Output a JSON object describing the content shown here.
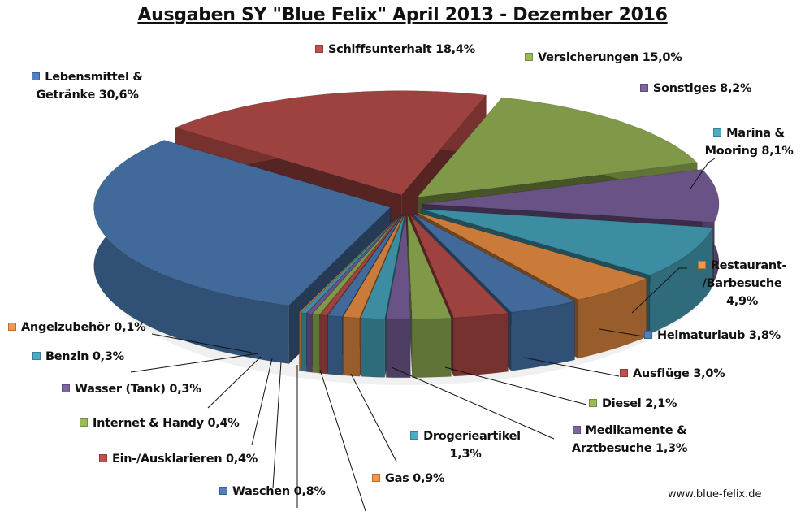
{
  "chart_data": {
    "type": "pie",
    "style": "3d-exploded",
    "title": "Ausgaben SY \"Blue Felix\" April 2013 - Dezember 2016",
    "unit": "%",
    "slices": [
      {
        "name": "Lebensmittel & Getränke",
        "value": 30.6,
        "label": "Lebensmittel & Getränke 30,6%",
        "color": "#4F81BD"
      },
      {
        "name": "Schiffsunterhalt",
        "value": 18.4,
        "label": "Schiffsunterhalt 18,4%",
        "color": "#C0504D"
      },
      {
        "name": "Versicherungen",
        "value": 15.0,
        "label": "Versicherungen 15,0%",
        "color": "#9BBB59"
      },
      {
        "name": "Sonstiges",
        "value": 8.2,
        "label": "Sonstiges 8,2%",
        "color": "#8064A2"
      },
      {
        "name": "Marina & Mooring",
        "value": 8.1,
        "label": "Marina & Mooring 8,1%",
        "color": "#4BACC6"
      },
      {
        "name": "Restaurant-/Barbesuche",
        "value": 4.9,
        "label": "Restaurant- /Barbesuche 4,9%",
        "color": "#F79646"
      },
      {
        "name": "Heimaturlaub",
        "value": 3.8,
        "label": "Heimaturlaub 3,8%",
        "color": "#4F81BD"
      },
      {
        "name": "Ausflüge",
        "value": 3.0,
        "label": "Ausflüge 3,0%",
        "color": "#C0504D"
      },
      {
        "name": "Diesel",
        "value": 2.1,
        "label": "Diesel 2,1%",
        "color": "#9BBB59"
      },
      {
        "name": "Medikamente & Arztbesuche",
        "value": 1.3,
        "label": "Medikamente & Arztbesuche 1,3%",
        "color": "#8064A2"
      },
      {
        "name": "Drogerieartikel",
        "value": 1.3,
        "label": "Drogerieartikel 1,3%",
        "color": "#4BACC6"
      },
      {
        "name": "Gas",
        "value": 0.9,
        "label": "Gas 0,9%",
        "color": "#F79646"
      },
      {
        "name": "Waschen",
        "value": 0.8,
        "label": "Waschen 0,8%",
        "color": "#4F81BD"
      },
      {
        "name": "Ein-/Ausklarieren",
        "value": 0.4,
        "label": "Ein-/Ausklarieren 0,4%",
        "color": "#C0504D"
      },
      {
        "name": "Internet & Handy",
        "value": 0.4,
        "label": "Internet & Handy 0,4%",
        "color": "#9BBB59"
      },
      {
        "name": "Wasser (Tank)",
        "value": 0.3,
        "label": "Wasser (Tank) 0,3%",
        "color": "#8064A2"
      },
      {
        "name": "Benzin",
        "value": 0.3,
        "label": "Benzin 0,3%",
        "color": "#4BACC6"
      },
      {
        "name": "Angelzubehör",
        "value": 0.1,
        "label": "Angelzubehör 0,1%",
        "color": "#F79646"
      }
    ]
  },
  "watermark": "www.blue-felix.de"
}
